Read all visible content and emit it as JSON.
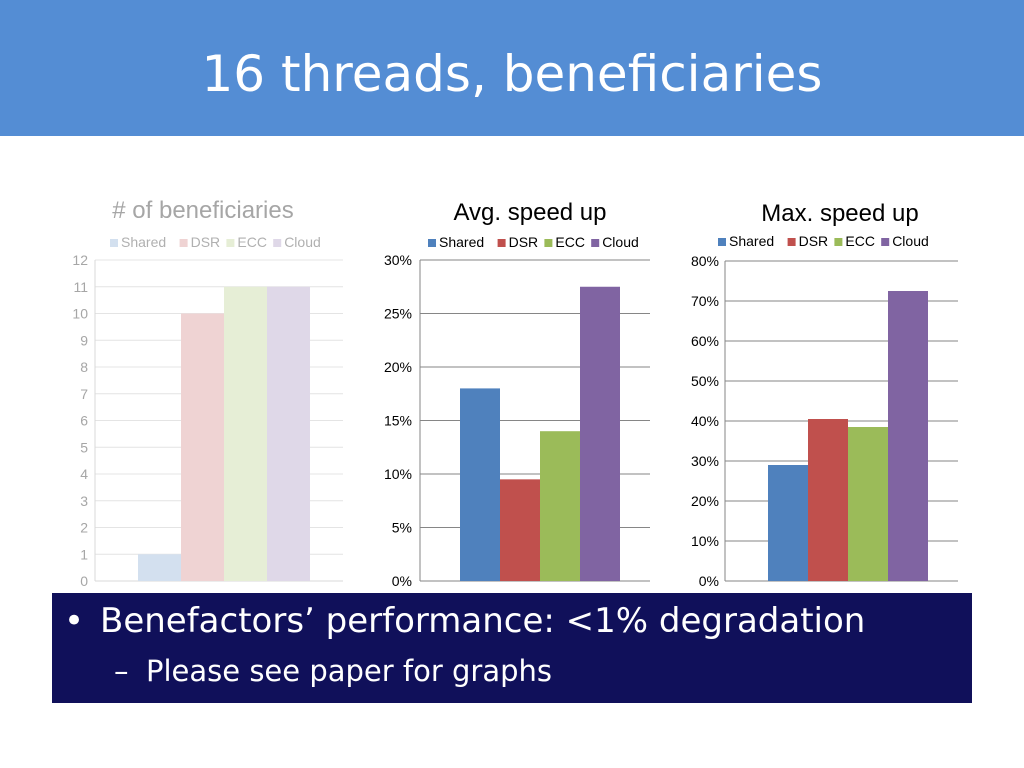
{
  "slide": {
    "title": "16 threads, beneficiaries",
    "bullet": {
      "marker": "•",
      "text": "Benefactors’ performance: <1% degradation"
    },
    "sub_bullet": {
      "marker": "–",
      "text": "Please see paper for graphs"
    }
  },
  "colors": {
    "header_bg": "#548dd4",
    "callout_bg": "#10105a",
    "Shared": "#4f81bd",
    "DSR": "#c0504d",
    "ECC": "#9bbb59",
    "Cloud": "#8064a2"
  },
  "chart_data": [
    {
      "type": "bar",
      "title": "# of beneficiaries",
      "faded": true,
      "categories": [
        ""
      ],
      "series": [
        {
          "name": "Shared",
          "values": [
            1
          ]
        },
        {
          "name": "DSR",
          "values": [
            10
          ]
        },
        {
          "name": "ECC",
          "values": [
            11
          ]
        },
        {
          "name": "Cloud",
          "values": [
            11
          ]
        }
      ],
      "ylim": [
        0,
        12
      ],
      "yticks": [
        "0",
        "1",
        "2",
        "3",
        "4",
        "5",
        "6",
        "7",
        "8",
        "9",
        "10",
        "11",
        "12"
      ],
      "grid": true,
      "legend": "top"
    },
    {
      "type": "bar",
      "title": "Avg. speed up",
      "faded": false,
      "categories": [
        ""
      ],
      "series": [
        {
          "name": "Shared",
          "values": [
            18
          ]
        },
        {
          "name": "DSR",
          "values": [
            9.5
          ]
        },
        {
          "name": "ECC",
          "values": [
            14
          ]
        },
        {
          "name": "Cloud",
          "values": [
            27.5
          ]
        }
      ],
      "ylim": [
        0,
        30
      ],
      "yticks": [
        "0%",
        "5%",
        "10%",
        "15%",
        "20%",
        "25%",
        "30%"
      ],
      "grid": true,
      "legend": "top"
    },
    {
      "type": "bar",
      "title": "Max. speed up",
      "faded": false,
      "categories": [
        ""
      ],
      "series": [
        {
          "name": "Shared",
          "values": [
            29
          ]
        },
        {
          "name": "DSR",
          "values": [
            40.5
          ]
        },
        {
          "name": "ECC",
          "values": [
            38.5
          ]
        },
        {
          "name": "Cloud",
          "values": [
            72.5
          ]
        }
      ],
      "ylim": [
        0,
        80
      ],
      "yticks": [
        "0%",
        "10%",
        "20%",
        "30%",
        "40%",
        "50%",
        "60%",
        "70%",
        "80%"
      ],
      "grid": true,
      "legend": "top"
    }
  ]
}
